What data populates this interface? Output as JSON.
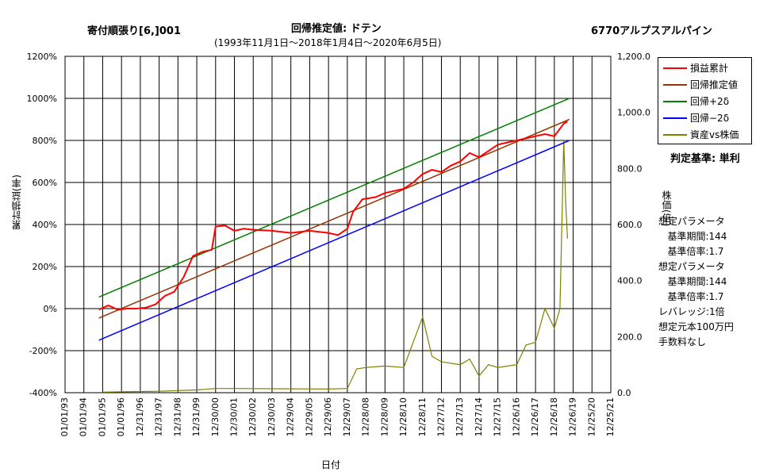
{
  "header": {
    "left_title": "寄付順張り[6,]001",
    "main_title": "回帰推定値: ドテン",
    "subtitle": "(1993年11月1日〜2018年1月4日〜2020年6月5日)",
    "stock": "6770アルプスアルパイン"
  },
  "judge_text": "判定基準: 単利",
  "params_text": "想定パラメータ\n   基準期間:144\n   基準倍率:1.7\n想定パラメータ\n   基準期間:144\n   基準倍率:1.7\nレバレッジ:1倍\n想定元本100万円\n手数料なし",
  "chart_data": {
    "type": "line",
    "xlabel": "日付",
    "ylabel": "累計損益(率)",
    "y2label": "株価(倍)",
    "ylim": [
      -400,
      1200
    ],
    "y2lim": [
      0,
      1200
    ],
    "x_ticks": [
      "01/01/93",
      "01/01/94",
      "01/01/95",
      "01/01/96",
      "12/31/96",
      "12/31/97",
      "12/31/98",
      "12/31/99",
      "12/30/00",
      "12/30/01",
      "12/30/02",
      "12/30/03",
      "12/29/04",
      "12/29/05",
      "12/29/06",
      "12/29/07",
      "12/28/08",
      "12/28/09",
      "12/28/10",
      "12/28/11",
      "12/27/12",
      "12/27/13",
      "12/27/14",
      "12/27/15",
      "12/26/16",
      "12/26/17",
      "12/26/18",
      "12/26/19",
      "12/25/20",
      "12/25/21"
    ],
    "y_ticks": [
      "1200%",
      "1000%",
      "800%",
      "600%",
      "400%",
      "200%",
      "0%",
      "-200%",
      "-400%"
    ],
    "y2_ticks": [
      "1,200.0",
      "1,000.0",
      "800.0",
      "600.0",
      "400.0",
      "200.0",
      "0.0"
    ],
    "legend": [
      "損益累計",
      "回帰推定値",
      "回帰+2δ",
      "回帰−2δ",
      "資産vs株価"
    ],
    "colors": {
      "cum": "#ff0000",
      "reg": "#993300",
      "up": "#008000",
      "down": "#0000ff",
      "asset": "#808000",
      "grid": "#000000"
    },
    "series": [
      {
        "name": "損益累計",
        "axis": "left",
        "x": [
          1994.8,
          1995.3,
          1995.8,
          1996.3,
          1996.8,
          1997.3,
          1997.8,
          1998.3,
          1998.8,
          1999.3,
          1999.8,
          2000.3,
          2000.8,
          2001.0,
          2001.5,
          2002.0,
          2002.5,
          2003.0,
          2004.0,
          2005.0,
          2006.0,
          2007.0,
          2007.5,
          2008.0,
          2008.3,
          2008.8,
          2009.5,
          2010.0,
          2011.0,
          2011.5,
          2012.0,
          2012.5,
          2013.0,
          2013.5,
          2014.0,
          2014.5,
          2015.0,
          2015.5,
          2016.0,
          2016.5,
          2017.0,
          2017.5,
          2018.0,
          2018.5,
          2019.0,
          2019.5,
          2019.7
        ],
        "values": [
          -5,
          15,
          -5,
          0,
          0,
          5,
          20,
          60,
          80,
          150,
          250,
          270,
          280,
          390,
          395,
          370,
          380,
          375,
          370,
          360,
          370,
          360,
          350,
          380,
          460,
          520,
          530,
          550,
          570,
          600,
          640,
          660,
          650,
          680,
          700,
          740,
          720,
          750,
          780,
          790,
          800,
          810,
          820,
          830,
          820,
          880,
          890
        ]
      },
      {
        "name": "回帰推定値",
        "axis": "left",
        "x": [
          1994.8,
          2019.8
        ],
        "values": [
          -45,
          900
        ]
      },
      {
        "name": "回帰+2δ",
        "axis": "left",
        "x": [
          1994.8,
          2019.8
        ],
        "values": [
          55,
          1000
        ]
      },
      {
        "name": "回帰−2δ",
        "axis": "left",
        "x": [
          1994.8,
          2019.8
        ],
        "values": [
          -150,
          800
        ]
      },
      {
        "name": "資産vs株価",
        "axis": "right",
        "x": [
          1995.0,
          1996.0,
          1998.0,
          2000.0,
          2001.0,
          2002.0,
          2005.0,
          2007.0,
          2008.0,
          2008.5,
          2009.0,
          2010.0,
          2011.0,
          2011.5,
          2012.0,
          2012.5,
          2013.0,
          2014.0,
          2014.5,
          2015.0,
          2015.5,
          2016.0,
          2017.0,
          2017.5,
          2018.0,
          2018.5,
          2019.0,
          2019.3,
          2019.5,
          2019.6,
          2019.7
        ],
        "values": [
          2,
          3,
          5,
          10,
          15,
          15,
          14,
          13,
          15,
          85,
          90,
          95,
          90,
          180,
          270,
          130,
          110,
          100,
          120,
          60,
          100,
          90,
          100,
          170,
          180,
          300,
          230,
          300,
          900,
          680,
          550
        ]
      }
    ]
  }
}
